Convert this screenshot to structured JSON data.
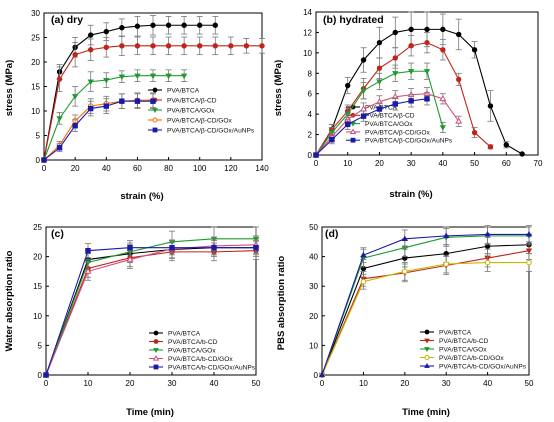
{
  "chart_data": [
    {
      "type": "line",
      "title": "(a) dry",
      "xlabel": "strain (%)",
      "ylabel": "stress (MPa)",
      "xlim": [
        0,
        140
      ],
      "ylim": [
        0,
        30
      ],
      "xticks": [
        "0",
        "20",
        "40",
        "60",
        "80",
        "100",
        "120",
        "140"
      ],
      "yticks": [
        "0",
        "5",
        "10",
        "15",
        "20",
        "25",
        "30"
      ],
      "legend_position": "bottom-right",
      "series": [
        {
          "name": "PVA/BTCA",
          "color": "#000000",
          "marker": "circle",
          "x": [
            0,
            10,
            20,
            30,
            40,
            50,
            60,
            70,
            80,
            90,
            100,
            110
          ],
          "y": [
            0,
            18,
            23,
            25.5,
            26.2,
            27,
            27.3,
            27.5,
            27.5,
            27.5,
            27.5,
            27.5
          ],
          "err": [
            0,
            1.5,
            2,
            2,
            1.8,
            1.8,
            2,
            2,
            1.8,
            1.8,
            1.8,
            1.8
          ]
        },
        {
          "name": "PVA/BTCA/β-CD",
          "color": "#c0251c",
          "marker": "circle",
          "x": [
            0,
            10,
            20,
            30,
            40,
            50,
            60,
            70,
            80,
            90,
            100,
            110,
            120,
            130,
            140
          ],
          "y": [
            0,
            16.5,
            21.5,
            22.5,
            23,
            23.3,
            23.3,
            23.3,
            23.3,
            23.3,
            23.3,
            23.3,
            23.3,
            23.3,
            23.3
          ],
          "err": [
            0,
            2.5,
            2.5,
            2.2,
            2,
            2,
            1.8,
            1.8,
            1.8,
            1.8,
            1.8,
            1.8,
            1.8,
            1.5,
            1.5
          ]
        },
        {
          "name": "PVA/BTCA/GOx",
          "color": "#1f9a2e",
          "marker": "triangle-down",
          "x": [
            0,
            10,
            20,
            30,
            40,
            50,
            60,
            70,
            80,
            90
          ],
          "y": [
            0,
            8.5,
            13,
            16,
            16.3,
            17,
            17.2,
            17.2,
            17.2,
            17.2
          ],
          "err": [
            0,
            1.2,
            2,
            2,
            1.5,
            1.2,
            1.2,
            1.2,
            1.2,
            1.2
          ]
        },
        {
          "name": "PVA/BTCA/β-CD/GOx",
          "color": "#ff6a00",
          "marker": "open-circle",
          "x": [
            0,
            10,
            20,
            30,
            40,
            50,
            60,
            70
          ],
          "y": [
            0,
            3,
            8,
            11,
            11.5,
            12,
            12.2,
            12.2
          ],
          "err": [
            0,
            0.8,
            1.2,
            1.5,
            1.5,
            1.5,
            1.5,
            1.5
          ]
        },
        {
          "name": "PVA/BTCA/β-CD/GOx/AuNPs",
          "color": "#1a1aa8",
          "marker": "square",
          "x": [
            0,
            10,
            20,
            30,
            40,
            50,
            60,
            70
          ],
          "y": [
            0,
            2.5,
            7,
            10.5,
            11,
            12,
            12,
            12
          ],
          "err": [
            0,
            0.8,
            1.2,
            1.5,
            1.5,
            1.5,
            1.5,
            1.5
          ]
        }
      ]
    },
    {
      "type": "line",
      "title": "(b) hydrated",
      "xlabel": "strain (%)",
      "ylabel": "stress (MPa)",
      "xlim": [
        0,
        70
      ],
      "ylim": [
        0,
        14
      ],
      "xticks": [
        "0",
        "10",
        "20",
        "30",
        "40",
        "50",
        "60",
        "70"
      ],
      "yticks": [
        "0",
        "2",
        "4",
        "6",
        "8",
        "10",
        "12",
        "14"
      ],
      "legend_position": "bottom-left",
      "series": [
        {
          "name": "PVA/BTCA",
          "color": "#000000",
          "marker": "circle",
          "x": [
            0,
            5,
            10,
            15,
            20,
            25,
            30,
            35,
            40,
            45,
            50,
            55,
            60,
            65
          ],
          "y": [
            0,
            2.5,
            6.8,
            9.3,
            11,
            12,
            12.3,
            12.3,
            12.3,
            11.8,
            10.3,
            4.8,
            1,
            0.1
          ],
          "err": [
            0,
            0.5,
            0.8,
            1.2,
            1.5,
            1.5,
            1.7,
            1.7,
            1.5,
            1.5,
            0.8,
            1.5,
            0.3,
            0
          ]
        },
        {
          "name": "PVA/BTCA/β-CD",
          "color": "#c0251c",
          "marker": "circle",
          "x": [
            0,
            5,
            10,
            15,
            20,
            25,
            30,
            35,
            40,
            45,
            50,
            55
          ],
          "y": [
            0,
            2.5,
            4.3,
            6.5,
            8.5,
            9.5,
            10.7,
            11,
            10.3,
            7.4,
            2.2,
            0.8
          ],
          "err": [
            0,
            0.5,
            0.6,
            1,
            1,
            1,
            1,
            1,
            1,
            0.6,
            0.5,
            0.2
          ]
        },
        {
          "name": "PVA/BTCA/GOx",
          "color": "#1f9a2e",
          "marker": "triangle-down",
          "x": [
            0,
            5,
            10,
            15,
            20,
            25,
            30,
            35,
            40
          ],
          "y": [
            0,
            2.2,
            4,
            6.3,
            7.2,
            8,
            8.2,
            8.2,
            2.7
          ],
          "err": [
            0,
            0.5,
            0.6,
            0.8,
            0.8,
            0.8,
            0.8,
            0.8,
            0.5
          ]
        },
        {
          "name": "PVA/BTCA/β-CD/GOx",
          "color": "#d05080",
          "marker": "open-triangle",
          "x": [
            0,
            5,
            10,
            15,
            20,
            25,
            30,
            35,
            40,
            45
          ],
          "y": [
            0,
            1.8,
            3.5,
            4.5,
            5.2,
            5.7,
            5.9,
            6,
            5.5,
            3.3
          ],
          "err": [
            0,
            0.4,
            0.5,
            0.6,
            0.6,
            0.6,
            0.6,
            0.6,
            0.5,
            0.5
          ]
        },
        {
          "name": "PVA/BTCA/β-CD/GOx/AuNPs",
          "color": "#1a1aa8",
          "marker": "square",
          "x": [
            0,
            5,
            10,
            15,
            20,
            25,
            30,
            35
          ],
          "y": [
            0,
            1.5,
            3,
            3.8,
            4.5,
            5,
            5.3,
            5.5
          ],
          "err": [
            0,
            0.4,
            0.5,
            0.5,
            0.6,
            0.6,
            0.6,
            0.6
          ]
        }
      ]
    },
    {
      "type": "line",
      "title": "(c)",
      "xlabel": "Time (min)",
      "ylabel": "Water absorption ratio",
      "xlim": [
        0,
        50
      ],
      "ylim": [
        0,
        25
      ],
      "xticks": [
        "0",
        "10",
        "20",
        "30",
        "40",
        "50"
      ],
      "yticks": [
        "0",
        "5",
        "10",
        "15",
        "20",
        "25"
      ],
      "legend_position": "bottom-right",
      "series": [
        {
          "name": "PVA/BTCA",
          "color": "#000000",
          "marker": "circle",
          "x": [
            0,
            10,
            20,
            30,
            40,
            50
          ],
          "y": [
            0,
            19.5,
            20.5,
            21.2,
            21.5,
            21.5
          ],
          "err": [
            0,
            1.5,
            1.5,
            1.5,
            1.5,
            1.5
          ]
        },
        {
          "name": "PVA/BTCA/b-CD",
          "color": "#c0251c",
          "marker": "circle",
          "x": [
            0,
            10,
            20,
            30,
            40,
            50
          ],
          "y": [
            0,
            18,
            19.8,
            20.8,
            20.8,
            21
          ],
          "err": [
            0,
            1.5,
            1.5,
            1.5,
            1.5,
            1.5
          ]
        },
        {
          "name": "PVA/BTCA/GOx",
          "color": "#1f9a2e",
          "marker": "triangle-down",
          "x": [
            0,
            10,
            20,
            30,
            40,
            50
          ],
          "y": [
            0,
            19,
            20.8,
            22.5,
            23,
            23
          ],
          "err": [
            0,
            1.5,
            1.5,
            1.8,
            2,
            2
          ]
        },
        {
          "name": "PVA/BTCA/b-CD/GOx",
          "color": "#d05080",
          "marker": "open-triangle",
          "x": [
            0,
            10,
            20,
            30,
            40,
            50
          ],
          "y": [
            0,
            17.5,
            19.5,
            21.3,
            21.8,
            22
          ],
          "err": [
            0,
            1.5,
            1.5,
            1.5,
            1.5,
            1.5
          ]
        },
        {
          "name": "PVA/BTCA/b-CD/GOx/AuNPs",
          "color": "#1a1aa8",
          "marker": "square",
          "x": [
            0,
            10,
            20,
            30,
            40,
            50
          ],
          "y": [
            0,
            21,
            21.5,
            21.5,
            21.5,
            21.5
          ],
          "err": [
            0,
            1.2,
            1.2,
            1.2,
            1.2,
            1.2
          ]
        }
      ]
    },
    {
      "type": "line",
      "title": "(d)",
      "xlabel": "Time (min)",
      "ylabel": "PBS absorption ratio",
      "xlim": [
        0,
        50
      ],
      "ylim": [
        0,
        50
      ],
      "xticks": [
        "0",
        "10",
        "20",
        "30",
        "40",
        "50"
      ],
      "yticks": [
        "0",
        "10",
        "20",
        "30",
        "40",
        "50"
      ],
      "legend_position": "bottom-right",
      "series": [
        {
          "name": "PVA/BTCA",
          "color": "#000000",
          "marker": "circle",
          "x": [
            0,
            10,
            20,
            30,
            40,
            50
          ],
          "y": [
            0,
            36,
            39.5,
            41,
            43.5,
            44
          ],
          "err": [
            0,
            3,
            3,
            3,
            3,
            3
          ]
        },
        {
          "name": "PVA/BTCA/b-CD",
          "color": "#c0251c",
          "marker": "triangle-down",
          "x": [
            0,
            10,
            20,
            30,
            40,
            50
          ],
          "y": [
            0,
            32.5,
            34.5,
            37,
            39.5,
            42
          ],
          "err": [
            0,
            2.5,
            3,
            3,
            3,
            3
          ]
        },
        {
          "name": "PVA/BTCA/GOx",
          "color": "#1f9a2e",
          "marker": "triangle-down",
          "x": [
            0,
            10,
            20,
            30,
            40,
            50
          ],
          "y": [
            0,
            39.5,
            43,
            46.5,
            47,
            47
          ],
          "err": [
            0,
            3,
            3,
            3,
            3,
            3
          ]
        },
        {
          "name": "PVA/BTCA/b-CD/GOx",
          "color": "#c8b400",
          "marker": "open-circle",
          "x": [
            0,
            10,
            20,
            30,
            40,
            50
          ],
          "y": [
            0,
            31.5,
            35,
            37.5,
            38,
            38
          ],
          "err": [
            0,
            2.5,
            3,
            3,
            3,
            3
          ]
        },
        {
          "name": "PVA/BTCA/b-CD/GOx/AuNPs",
          "color": "#1a1aa8",
          "marker": "triangle-up",
          "x": [
            0,
            10,
            20,
            30,
            40,
            50
          ],
          "y": [
            0,
            40.5,
            46,
            47,
            47.5,
            47.5
          ],
          "err": [
            0,
            2.5,
            3,
            3,
            3,
            3
          ]
        }
      ]
    }
  ]
}
